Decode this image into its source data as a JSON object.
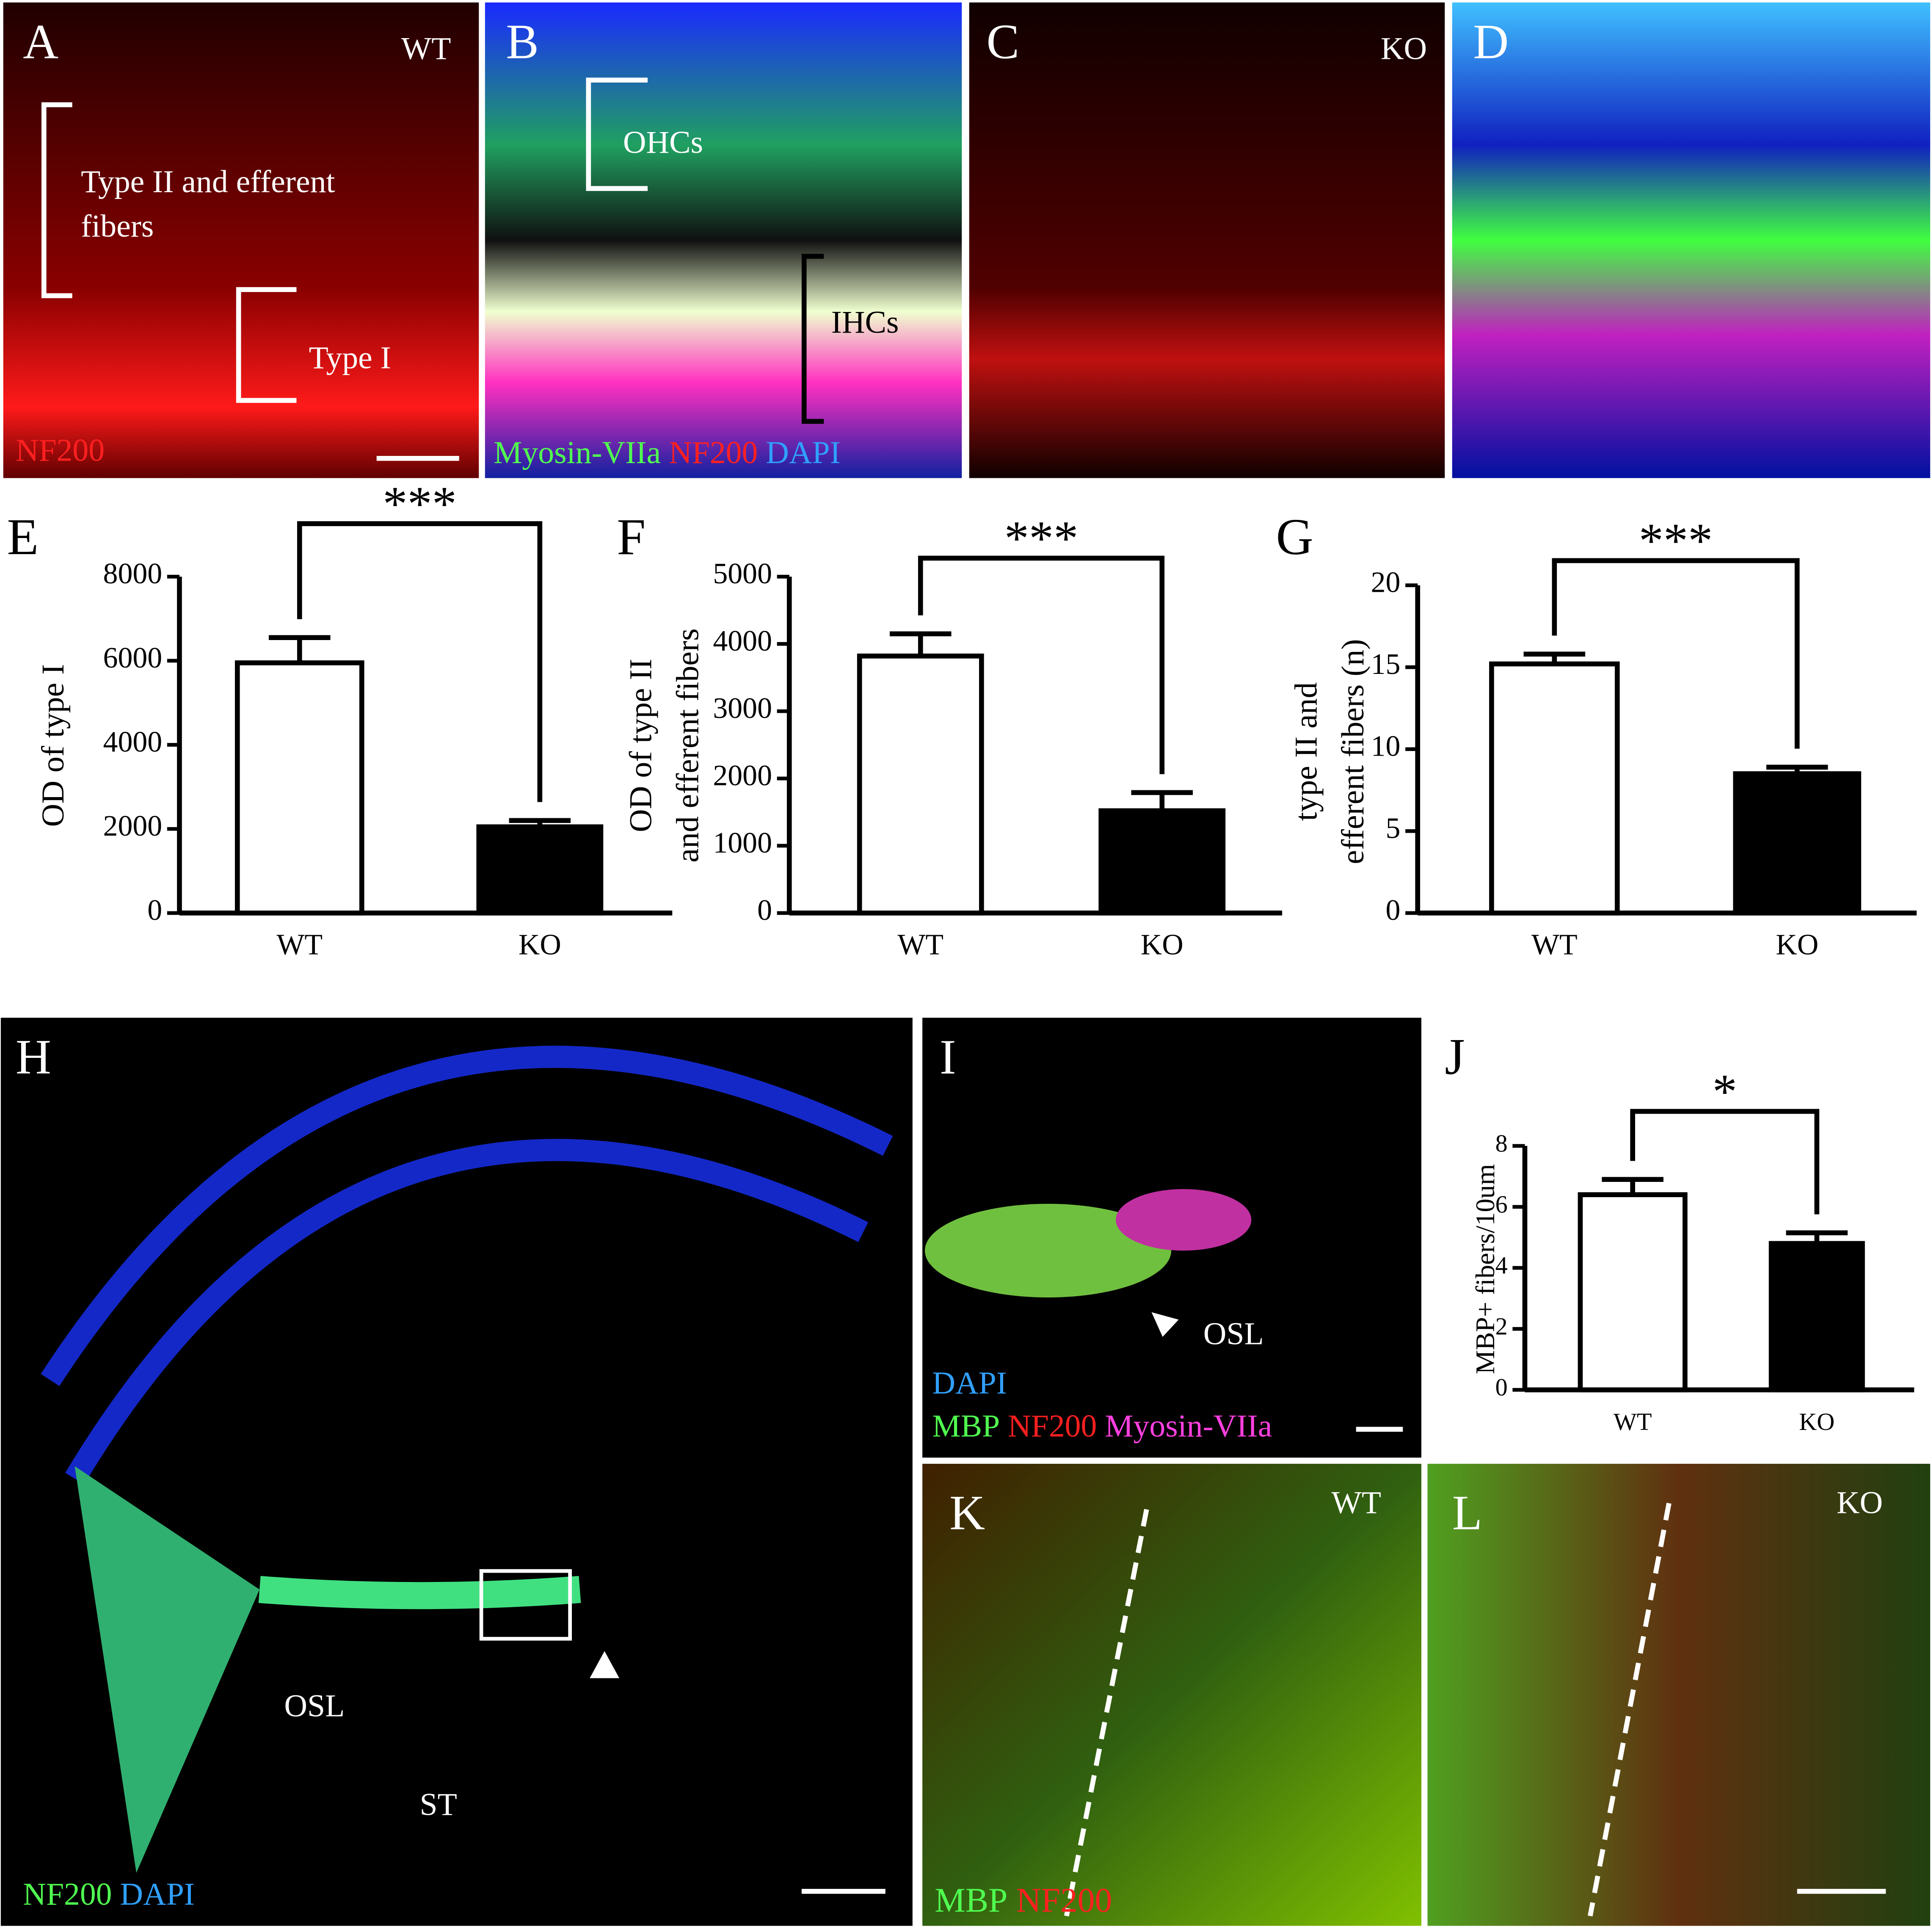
{
  "chart_data": [
    {
      "type": "bar",
      "panel": "E",
      "ylabel": [
        "OD of type I"
      ],
      "categories": [
        "WT",
        "KO"
      ],
      "values": [
        5950,
        2050
      ],
      "errors": [
        600,
        150
      ],
      "colors": [
        "#ffffff",
        "#000000"
      ],
      "ylim": [
        0,
        8000
      ],
      "yticks": [
        0,
        2000,
        4000,
        6000,
        8000
      ],
      "significance": "***"
    },
    {
      "type": "bar",
      "panel": "F",
      "ylabel": [
        "OD of type II",
        "and efferent fibers"
      ],
      "categories": [
        "WT",
        "KO"
      ],
      "values": [
        3820,
        1520
      ],
      "errors": [
        330,
        270
      ],
      "colors": [
        "#ffffff",
        "#000000"
      ],
      "ylim": [
        0,
        5000
      ],
      "yticks": [
        0,
        1000,
        2000,
        3000,
        4000,
        5000
      ],
      "significance": "***"
    },
    {
      "type": "bar",
      "panel": "G",
      "ylabel": [
        "type II and",
        "efferent fibers (n)"
      ],
      "categories": [
        "WT",
        "KO"
      ],
      "values": [
        15.2,
        8.5
      ],
      "errors": [
        0.6,
        0.4
      ],
      "colors": [
        "#ffffff",
        "#000000"
      ],
      "ylim": [
        0,
        20
      ],
      "yticks": [
        0,
        5,
        10,
        15,
        20
      ],
      "significance": "***"
    },
    {
      "type": "bar",
      "panel": "J",
      "ylabel": [
        "MBP+ fibers/10um"
      ],
      "categories": [
        "WT",
        "KO"
      ],
      "values": [
        6.4,
        4.8
      ],
      "errors": [
        0.5,
        0.35
      ],
      "colors": [
        "#ffffff",
        "#000000"
      ],
      "ylim": [
        0,
        8
      ],
      "yticks": [
        0,
        2,
        4,
        6,
        8
      ],
      "significance": "*"
    }
  ],
  "images": {
    "A": {
      "label": "A",
      "group": "WT",
      "bracket1": "Type II and efferent",
      "bracket1b": "fibers",
      "bracket2": "Type I",
      "stain": "NF200"
    },
    "B": {
      "label": "B",
      "bracket1": "OHCs",
      "bracket2": "IHCs",
      "stains": [
        "Myosin-VIIa",
        "NF200",
        "DAPI"
      ]
    },
    "C": {
      "label": "C",
      "group": "KO"
    },
    "D": {
      "label": "D"
    },
    "H": {
      "label": "H",
      "osl": "OSL",
      "st": "ST",
      "stains": [
        "NF200",
        "DAPI"
      ]
    },
    "I": {
      "label": "I",
      "osl": "OSL",
      "stains": [
        "DAPI",
        "MBP",
        "NF200",
        "Myosin-VIIa"
      ]
    },
    "K": {
      "label": "K",
      "group": "WT",
      "stains": [
        "MBP",
        "NF200"
      ]
    },
    "L": {
      "label": "L",
      "group": "KO"
    }
  }
}
